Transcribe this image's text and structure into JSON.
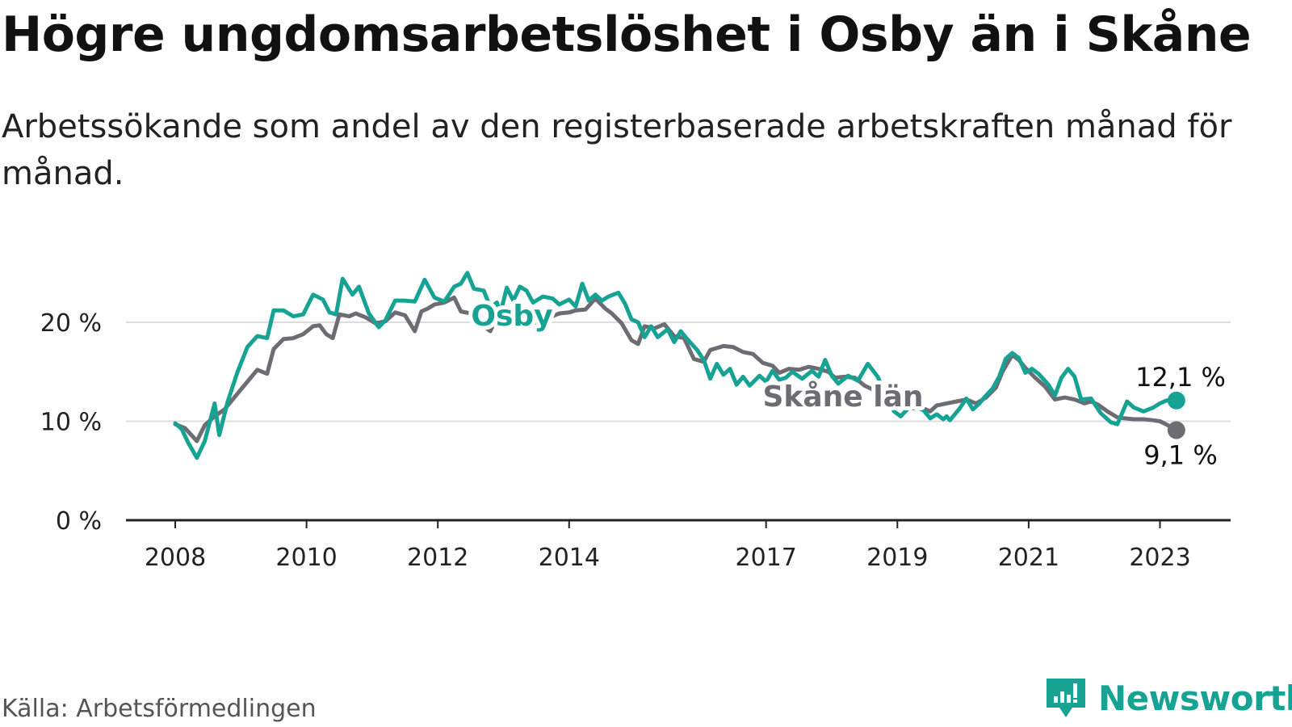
{
  "title": "Högre ungdomsarbetslöshet i Osby än i Skåne",
  "subtitle": "Arbetssökande som andel av den registerbaserade arbetskraften månad för månad.",
  "source": "Källa: Arbetsförmedlingen",
  "brand": {
    "name": "Newsworthy"
  },
  "colors": {
    "osby": "#16a394",
    "skane": "#6e6c73",
    "grid": "#dddddd",
    "axis": "#222222",
    "brand": "#16a394"
  },
  "chart_data": {
    "type": "line",
    "title": "Högre ungdomsarbetslöshet i Osby än i Skåne",
    "xlabel": "",
    "ylabel": "",
    "xlim": [
      2008.0,
      2024.0
    ],
    "ylim": [
      0,
      25
    ],
    "x_ticks": [
      2008,
      2010,
      2012,
      2014,
      2017,
      2019,
      2021,
      2023
    ],
    "x_tick_labels": [
      "2008",
      "2010",
      "2012",
      "2014",
      "2017",
      "2019",
      "2021",
      "2023"
    ],
    "y_ticks": [
      0,
      10,
      20
    ],
    "y_tick_labels": [
      "0 %",
      "10 %",
      "20 %"
    ],
    "series": [
      {
        "name": "Osby",
        "color": "#16a394",
        "anchors": [
          [
            2008.0,
            9.8
          ],
          [
            2008.1,
            9.2
          ],
          [
            2008.2,
            7.8
          ],
          [
            2008.33,
            6.3
          ],
          [
            2008.45,
            8.0
          ],
          [
            2008.6,
            11.8
          ],
          [
            2008.67,
            8.6
          ],
          [
            2008.8,
            12.0
          ],
          [
            2008.95,
            15.0
          ],
          [
            2009.1,
            17.5
          ],
          [
            2009.25,
            18.6
          ],
          [
            2009.4,
            18.4
          ],
          [
            2009.5,
            21.2
          ],
          [
            2009.65,
            21.2
          ],
          [
            2009.8,
            20.6
          ],
          [
            2009.95,
            20.8
          ],
          [
            2010.1,
            22.8
          ],
          [
            2010.25,
            22.3
          ],
          [
            2010.35,
            21.0
          ],
          [
            2010.45,
            20.8
          ],
          [
            2010.55,
            24.4
          ],
          [
            2010.7,
            22.8
          ],
          [
            2010.8,
            23.6
          ],
          [
            2010.95,
            20.9
          ],
          [
            2011.1,
            19.5
          ],
          [
            2011.2,
            20.2
          ],
          [
            2011.35,
            22.2
          ],
          [
            2011.5,
            22.2
          ],
          [
            2011.65,
            22.1
          ],
          [
            2011.8,
            24.3
          ],
          [
            2011.95,
            22.5
          ],
          [
            2012.1,
            22.1
          ],
          [
            2012.25,
            23.6
          ],
          [
            2012.35,
            23.9
          ],
          [
            2012.45,
            25.0
          ],
          [
            2012.55,
            23.4
          ],
          [
            2012.7,
            23.2
          ],
          [
            2012.8,
            21.5
          ],
          [
            2012.9,
            22.0
          ],
          [
            2012.95,
            20.8
          ],
          [
            2013.05,
            23.5
          ],
          [
            2013.15,
            22.2
          ],
          [
            2013.25,
            23.6
          ],
          [
            2013.35,
            23.2
          ],
          [
            2013.45,
            22.0
          ],
          [
            2013.6,
            22.6
          ],
          [
            2013.75,
            22.4
          ],
          [
            2013.85,
            21.8
          ],
          [
            2014.0,
            22.3
          ],
          [
            2014.1,
            21.6
          ],
          [
            2014.2,
            23.9
          ],
          [
            2014.3,
            22.2
          ],
          [
            2014.4,
            22.8
          ],
          [
            2014.5,
            22.2
          ],
          [
            2014.6,
            22.6
          ],
          [
            2014.75,
            23.0
          ],
          [
            2014.85,
            21.9
          ],
          [
            2014.95,
            20.3
          ],
          [
            2015.05,
            20.0
          ],
          [
            2015.15,
            18.5
          ],
          [
            2015.25,
            19.6
          ],
          [
            2015.35,
            18.5
          ],
          [
            2015.5,
            19.3
          ],
          [
            2015.6,
            18.0
          ],
          [
            2015.7,
            19.1
          ],
          [
            2015.8,
            18.3
          ],
          [
            2015.95,
            17.2
          ],
          [
            2016.05,
            16.2
          ],
          [
            2016.15,
            14.3
          ],
          [
            2016.25,
            15.8
          ],
          [
            2016.35,
            14.7
          ],
          [
            2016.45,
            15.3
          ],
          [
            2016.55,
            13.7
          ],
          [
            2016.65,
            14.5
          ],
          [
            2016.75,
            13.6
          ],
          [
            2016.9,
            14.6
          ],
          [
            2017.0,
            14.0
          ],
          [
            2017.1,
            15.1
          ],
          [
            2017.2,
            14.2
          ],
          [
            2017.3,
            14.4
          ],
          [
            2017.4,
            15.0
          ],
          [
            2017.55,
            14.3
          ],
          [
            2017.7,
            15.1
          ],
          [
            2017.8,
            14.5
          ],
          [
            2017.9,
            16.2
          ],
          [
            2018.0,
            14.6
          ],
          [
            2018.1,
            13.8
          ],
          [
            2018.25,
            14.6
          ],
          [
            2018.4,
            14.1
          ],
          [
            2018.55,
            15.8
          ],
          [
            2018.7,
            14.5
          ],
          [
            2018.85,
            12.4
          ],
          [
            2018.95,
            11.0
          ],
          [
            2019.05,
            10.5
          ],
          [
            2019.15,
            11.2
          ],
          [
            2019.25,
            11.6
          ],
          [
            2019.4,
            11.1
          ],
          [
            2019.5,
            10.3
          ],
          [
            2019.6,
            10.7
          ],
          [
            2019.7,
            10.2
          ],
          [
            2019.75,
            10.5
          ],
          [
            2019.8,
            10.1
          ],
          [
            2019.95,
            11.3
          ],
          [
            2020.05,
            12.3
          ],
          [
            2020.15,
            11.2
          ],
          [
            2020.25,
            11.8
          ],
          [
            2020.35,
            12.6
          ],
          [
            2020.45,
            13.3
          ],
          [
            2020.55,
            14.5
          ],
          [
            2020.65,
            16.3
          ],
          [
            2020.75,
            16.9
          ],
          [
            2020.85,
            16.4
          ],
          [
            2020.95,
            14.9
          ],
          [
            2021.05,
            15.3
          ],
          [
            2021.15,
            14.8
          ],
          [
            2021.3,
            13.7
          ],
          [
            2021.4,
            12.6
          ],
          [
            2021.5,
            14.4
          ],
          [
            2021.6,
            15.3
          ],
          [
            2021.7,
            14.5
          ],
          [
            2021.8,
            12.2
          ],
          [
            2021.95,
            12.3
          ],
          [
            2022.1,
            10.8
          ],
          [
            2022.25,
            9.9
          ],
          [
            2022.35,
            9.7
          ],
          [
            2022.5,
            12.0
          ],
          [
            2022.6,
            11.4
          ],
          [
            2022.75,
            11.0
          ],
          [
            2022.9,
            11.4
          ],
          [
            2023.0,
            11.8
          ],
          [
            2023.1,
            12.1
          ],
          [
            2023.25,
            12.1
          ]
        ],
        "last_label": "12,1 %"
      },
      {
        "name": "Skåne län",
        "color": "#6e6c73",
        "anchors": [
          [
            2008.0,
            9.7
          ],
          [
            2008.15,
            9.3
          ],
          [
            2008.33,
            8.0
          ],
          [
            2008.45,
            9.6
          ],
          [
            2008.6,
            10.5
          ],
          [
            2008.75,
            11.2
          ],
          [
            2008.95,
            12.8
          ],
          [
            2009.1,
            14.0
          ],
          [
            2009.25,
            15.2
          ],
          [
            2009.4,
            14.8
          ],
          [
            2009.5,
            17.3
          ],
          [
            2009.65,
            18.3
          ],
          [
            2009.8,
            18.4
          ],
          [
            2009.95,
            18.8
          ],
          [
            2010.1,
            19.6
          ],
          [
            2010.2,
            19.7
          ],
          [
            2010.3,
            18.8
          ],
          [
            2010.4,
            18.4
          ],
          [
            2010.5,
            20.8
          ],
          [
            2010.65,
            20.6
          ],
          [
            2010.75,
            20.9
          ],
          [
            2010.9,
            20.5
          ],
          [
            2011.05,
            19.9
          ],
          [
            2011.2,
            20.1
          ],
          [
            2011.35,
            21.0
          ],
          [
            2011.5,
            20.7
          ],
          [
            2011.65,
            19.1
          ],
          [
            2011.75,
            21.1
          ],
          [
            2011.85,
            21.4
          ],
          [
            2011.95,
            21.8
          ],
          [
            2012.1,
            22.0
          ],
          [
            2012.25,
            22.5
          ],
          [
            2012.35,
            21.1
          ],
          [
            2012.5,
            20.9
          ],
          [
            2012.65,
            19.8
          ],
          [
            2012.8,
            19.1
          ],
          [
            2012.95,
            21.3
          ],
          [
            2013.1,
            21.0
          ],
          [
            2013.25,
            20.8
          ],
          [
            2013.4,
            20.0
          ],
          [
            2013.55,
            19.4
          ],
          [
            2013.7,
            20.5
          ],
          [
            2013.85,
            20.9
          ],
          [
            2014.0,
            21.0
          ],
          [
            2014.1,
            21.2
          ],
          [
            2014.25,
            21.3
          ],
          [
            2014.4,
            22.4
          ],
          [
            2014.55,
            21.4
          ],
          [
            2014.65,
            20.9
          ],
          [
            2014.8,
            19.9
          ],
          [
            2014.95,
            18.2
          ],
          [
            2015.05,
            17.8
          ],
          [
            2015.15,
            19.6
          ],
          [
            2015.3,
            19.4
          ],
          [
            2015.45,
            19.8
          ],
          [
            2015.6,
            18.6
          ],
          [
            2015.75,
            18.4
          ],
          [
            2015.9,
            16.3
          ],
          [
            2016.05,
            16.0
          ],
          [
            2016.15,
            17.2
          ],
          [
            2016.35,
            17.6
          ],
          [
            2016.5,
            17.5
          ],
          [
            2016.65,
            17.0
          ],
          [
            2016.8,
            16.8
          ],
          [
            2016.95,
            15.9
          ],
          [
            2017.1,
            15.6
          ],
          [
            2017.2,
            14.9
          ],
          [
            2017.35,
            15.3
          ],
          [
            2017.5,
            15.2
          ],
          [
            2017.65,
            15.5
          ],
          [
            2017.8,
            15.3
          ],
          [
            2017.95,
            15.0
          ],
          [
            2018.05,
            14.4
          ],
          [
            2018.2,
            14.5
          ],
          [
            2018.35,
            14.4
          ],
          [
            2018.5,
            13.6
          ],
          [
            2018.6,
            13.3
          ],
          [
            2018.75,
            12.6
          ],
          [
            2018.85,
            12.0
          ],
          [
            2018.95,
            11.5
          ],
          [
            2019.1,
            11.5
          ],
          [
            2019.25,
            11.3
          ],
          [
            2019.4,
            11.3
          ],
          [
            2019.5,
            11.0
          ],
          [
            2019.6,
            11.6
          ],
          [
            2019.75,
            11.8
          ],
          [
            2019.9,
            12.0
          ],
          [
            2020.05,
            12.2
          ],
          [
            2020.2,
            11.8
          ],
          [
            2020.35,
            12.4
          ],
          [
            2020.5,
            13.4
          ],
          [
            2020.6,
            15.0
          ],
          [
            2020.75,
            16.7
          ],
          [
            2020.85,
            16.2
          ],
          [
            2020.95,
            15.4
          ],
          [
            2021.1,
            14.4
          ],
          [
            2021.25,
            13.5
          ],
          [
            2021.4,
            12.2
          ],
          [
            2021.55,
            12.4
          ],
          [
            2021.7,
            12.2
          ],
          [
            2021.85,
            11.8
          ],
          [
            2021.95,
            12.0
          ],
          [
            2022.05,
            11.7
          ],
          [
            2022.2,
            11.0
          ],
          [
            2022.35,
            10.4
          ],
          [
            2022.45,
            10.3
          ],
          [
            2022.6,
            10.2
          ],
          [
            2022.75,
            10.2
          ],
          [
            2022.9,
            10.1
          ],
          [
            2023.0,
            10.0
          ],
          [
            2023.15,
            9.5
          ],
          [
            2023.25,
            9.1
          ]
        ],
        "last_label": "9,1 %"
      }
    ],
    "annotations": [
      "Osby",
      "Skåne län"
    ],
    "legend": "direct labels"
  }
}
